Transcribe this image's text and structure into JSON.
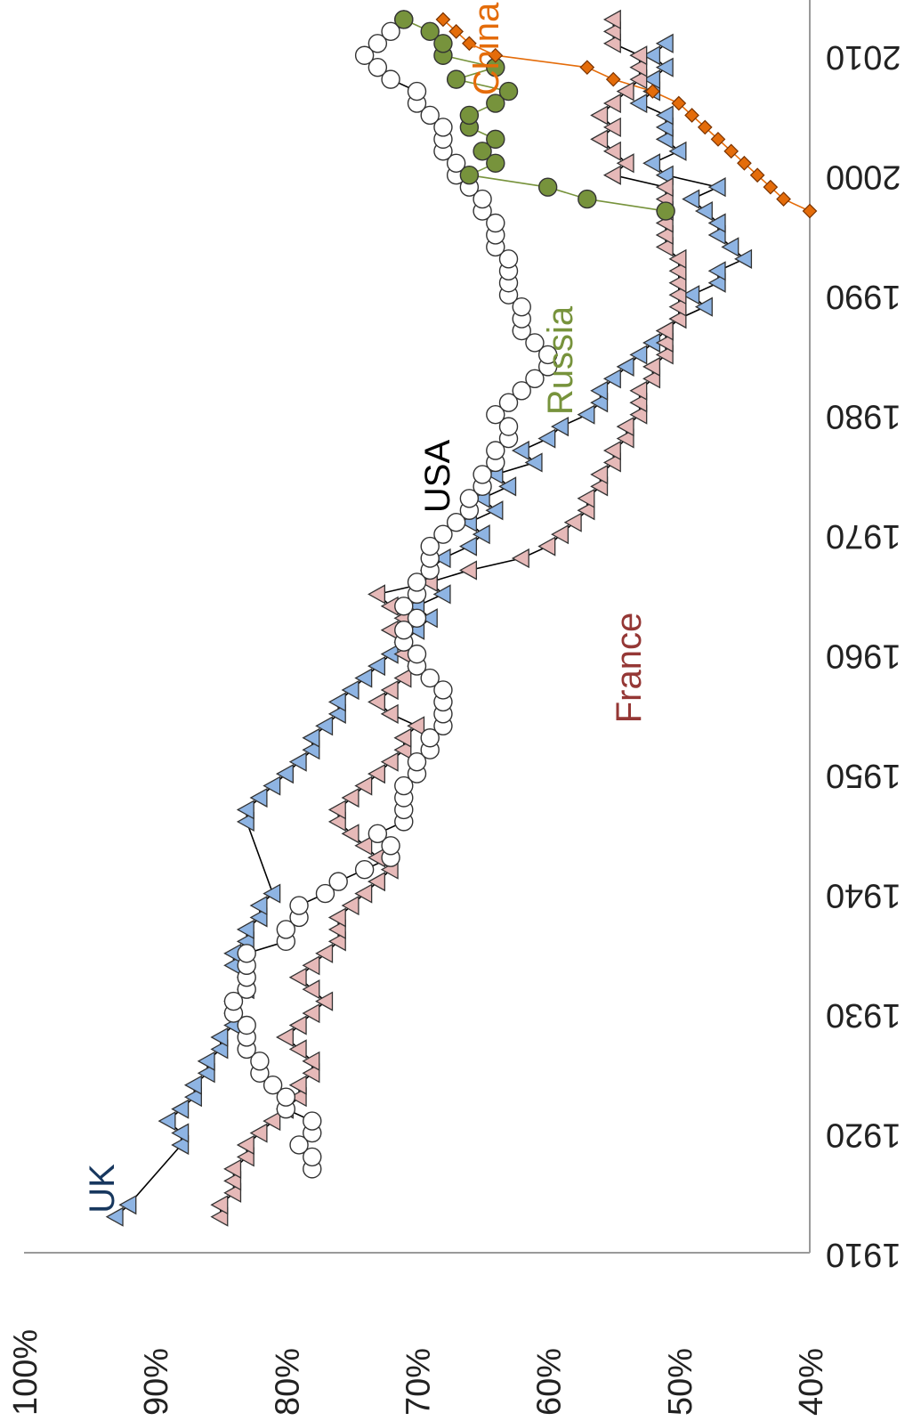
{
  "chart_data": {
    "type": "scatter",
    "orientation": "rotated-90-clockwise",
    "title": "",
    "xlabel": "",
    "ylabel": "",
    "x_ticks": [
      "1910",
      "1920",
      "1930",
      "1940",
      "1950",
      "1960",
      "1970",
      "1980",
      "1990",
      "2000",
      "2010"
    ],
    "y_ticks": [
      "40%",
      "50%",
      "60%",
      "70%",
      "80%",
      "90%",
      "100%"
    ],
    "xlim": [
      1910,
      2015
    ],
    "ylim": [
      40,
      100
    ],
    "grid": false,
    "series": [
      {
        "name": "UK",
        "color": "#8eb4e3",
        "label_color": "#17375e",
        "marker": "triangle",
        "x": [
          1913,
          1914,
          1919,
          1920,
          1921,
          1922,
          1923,
          1924,
          1925,
          1926,
          1927,
          1928,
          1929,
          1930,
          1931,
          1932,
          1933,
          1934,
          1935,
          1936,
          1937,
          1938,
          1939,
          1940,
          1946,
          1947,
          1948,
          1949,
          1950,
          1951,
          1952,
          1953,
          1954,
          1955,
          1956,
          1957,
          1958,
          1959,
          1960,
          1961,
          1962,
          1963,
          1964,
          1965,
          1966,
          1967,
          1968,
          1969,
          1970,
          1971,
          1972,
          1973,
          1974,
          1975,
          1976,
          1977,
          1978,
          1979,
          1980,
          1981,
          1982,
          1983,
          1984,
          1985,
          1986,
          1987,
          1988,
          1989,
          1990,
          1991,
          1992,
          1993,
          1994,
          1995,
          1996,
          1997,
          1998,
          1999,
          2000,
          2001,
          2002,
          2003,
          2004,
          2005,
          2006,
          2007,
          2008,
          2009,
          2010,
          2011
        ],
        "y": [
          93,
          92,
          88,
          88,
          89,
          88,
          87,
          87,
          86,
          86,
          85,
          85,
          84,
          84,
          84,
          83,
          83,
          84,
          84,
          83,
          83,
          82,
          82,
          81,
          83,
          83,
          82,
          81,
          80,
          79,
          78,
          78,
          77,
          76,
          76,
          75,
          74,
          73,
          72,
          71,
          70,
          69,
          70,
          68,
          69,
          69,
          68,
          66,
          65,
          66,
          64,
          65,
          63,
          64,
          61,
          62,
          60,
          59,
          57,
          56,
          56,
          55,
          54,
          53,
          52,
          51,
          50,
          48,
          49,
          47,
          47,
          45,
          46,
          47,
          47,
          48,
          49,
          47,
          51,
          52,
          50,
          51,
          51,
          51,
          53,
          52,
          52,
          51,
          52,
          51
        ]
      },
      {
        "name": "France",
        "color": "#e6b9b8",
        "label_color": "#953735",
        "marker": "triangle",
        "x": [
          1913,
          1914,
          1915,
          1916,
          1917,
          1918,
          1919,
          1920,
          1921,
          1922,
          1923,
          1924,
          1925,
          1926,
          1927,
          1928,
          1929,
          1930,
          1931,
          1932,
          1933,
          1934,
          1935,
          1936,
          1937,
          1938,
          1939,
          1940,
          1941,
          1942,
          1943,
          1944,
          1945,
          1946,
          1947,
          1948,
          1949,
          1950,
          1951,
          1952,
          1953,
          1954,
          1955,
          1956,
          1957,
          1958,
          1959,
          1960,
          1961,
          1962,
          1963,
          1964,
          1965,
          1966,
          1967,
          1968,
          1969,
          1970,
          1971,
          1972,
          1973,
          1974,
          1975,
          1976,
          1977,
          1978,
          1979,
          1980,
          1981,
          1982,
          1983,
          1984,
          1985,
          1986,
          1987,
          1988,
          1989,
          1990,
          1991,
          1992,
          1993,
          1994,
          1995,
          1996,
          1997,
          1998,
          1999,
          2000,
          2001,
          2002,
          2003,
          2004,
          2005,
          2006,
          2007,
          2008,
          2009,
          2010,
          2011,
          2012,
          2013
        ],
        "y": [
          85,
          85,
          84,
          84,
          84,
          83,
          83,
          82,
          81,
          80,
          79,
          79,
          78,
          78,
          79,
          80,
          79,
          78,
          77,
          78,
          79,
          78,
          77,
          76,
          76,
          76,
          75,
          74,
          73,
          72,
          73,
          74,
          75,
          76,
          76,
          75,
          74,
          73,
          72,
          71,
          71,
          70,
          72,
          73,
          72,
          71,
          70,
          71,
          71,
          72,
          71,
          72,
          73,
          69,
          66,
          62,
          60,
          59,
          58,
          57,
          57,
          56,
          56,
          55,
          55,
          54,
          54,
          53,
          53,
          53,
          52,
          52,
          51,
          51,
          51,
          50,
          50,
          50,
          50,
          50,
          50,
          51,
          51,
          51,
          51,
          51,
          51,
          55,
          54,
          55,
          56,
          55,
          56,
          55,
          54,
          53,
          53,
          53,
          55,
          55,
          55
        ]
      },
      {
        "name": "USA",
        "color": "#ffffff",
        "label_color": "#000000",
        "marker": "circle",
        "x": [
          1917,
          1918,
          1919,
          1920,
          1921,
          1922,
          1923,
          1924,
          1925,
          1926,
          1927,
          1928,
          1929,
          1930,
          1931,
          1932,
          1933,
          1934,
          1935,
          1936,
          1937,
          1938,
          1939,
          1940,
          1941,
          1942,
          1943,
          1944,
          1945,
          1946,
          1947,
          1948,
          1949,
          1950,
          1951,
          1952,
          1953,
          1954,
          1955,
          1956,
          1957,
          1958,
          1959,
          1960,
          1961,
          1962,
          1963,
          1964,
          1965,
          1966,
          1967,
          1968,
          1969,
          1970,
          1971,
          1972,
          1973,
          1974,
          1975,
          1976,
          1977,
          1978,
          1979,
          1980,
          1981,
          1982,
          1983,
          1984,
          1985,
          1986,
          1987,
          1988,
          1989,
          1990,
          1991,
          1992,
          1993,
          1994,
          1995,
          1996,
          1997,
          1998,
          1999,
          2000,
          2001,
          2002,
          2003,
          2004,
          2005,
          2006,
          2007,
          2008,
          2009,
          2010,
          2011,
          2012,
          2013
        ],
        "y": [
          78,
          78,
          79,
          78,
          78,
          80,
          80,
          81,
          82,
          82,
          83,
          83,
          83,
          84,
          84,
          83,
          83,
          83,
          83,
          80,
          80,
          79,
          79,
          77,
          76,
          74,
          72,
          72,
          73,
          71,
          71,
          71,
          71,
          70,
          70,
          69,
          69,
          68,
          68,
          68,
          68,
          69,
          70,
          70,
          71,
          71,
          70,
          71,
          70,
          70,
          69,
          69,
          69,
          68,
          67,
          66,
          66,
          65,
          65,
          64,
          64,
          63,
          63,
          64,
          63,
          62,
          61,
          60,
          60,
          61,
          62,
          62,
          62,
          63,
          63,
          63,
          63,
          64,
          64,
          64,
          65,
          65,
          66,
          67,
          67,
          68,
          68,
          68,
          69,
          70,
          70,
          72,
          73,
          74,
          73,
          72,
          71
        ]
      },
      {
        "name": "Russia",
        "color": "#77933c",
        "label_color": "#77933c",
        "marker": "circle",
        "x": [
          1997,
          1998,
          1999,
          2000,
          2001,
          2002,
          2003,
          2004,
          2005,
          2006,
          2007,
          2008,
          2009,
          2010,
          2011,
          2012,
          2013
        ],
        "y": [
          51,
          57,
          60,
          66,
          64,
          65,
          64,
          66,
          66,
          64,
          63,
          67,
          64,
          68,
          68,
          69,
          71
        ]
      },
      {
        "name": "China",
        "color": "#e46c0a",
        "label_color": "#e46c0a",
        "marker": "diamond",
        "x": [
          1997,
          1998,
          1999,
          2000,
          2001,
          2002,
          2003,
          2004,
          2005,
          2006,
          2007,
          2008,
          2009,
          2010,
          2011,
          2012,
          2013
        ],
        "y": [
          40,
          42,
          43,
          44,
          45,
          46,
          47,
          48,
          49,
          50,
          52,
          55,
          57,
          64,
          66,
          67,
          68
        ]
      }
    ]
  }
}
